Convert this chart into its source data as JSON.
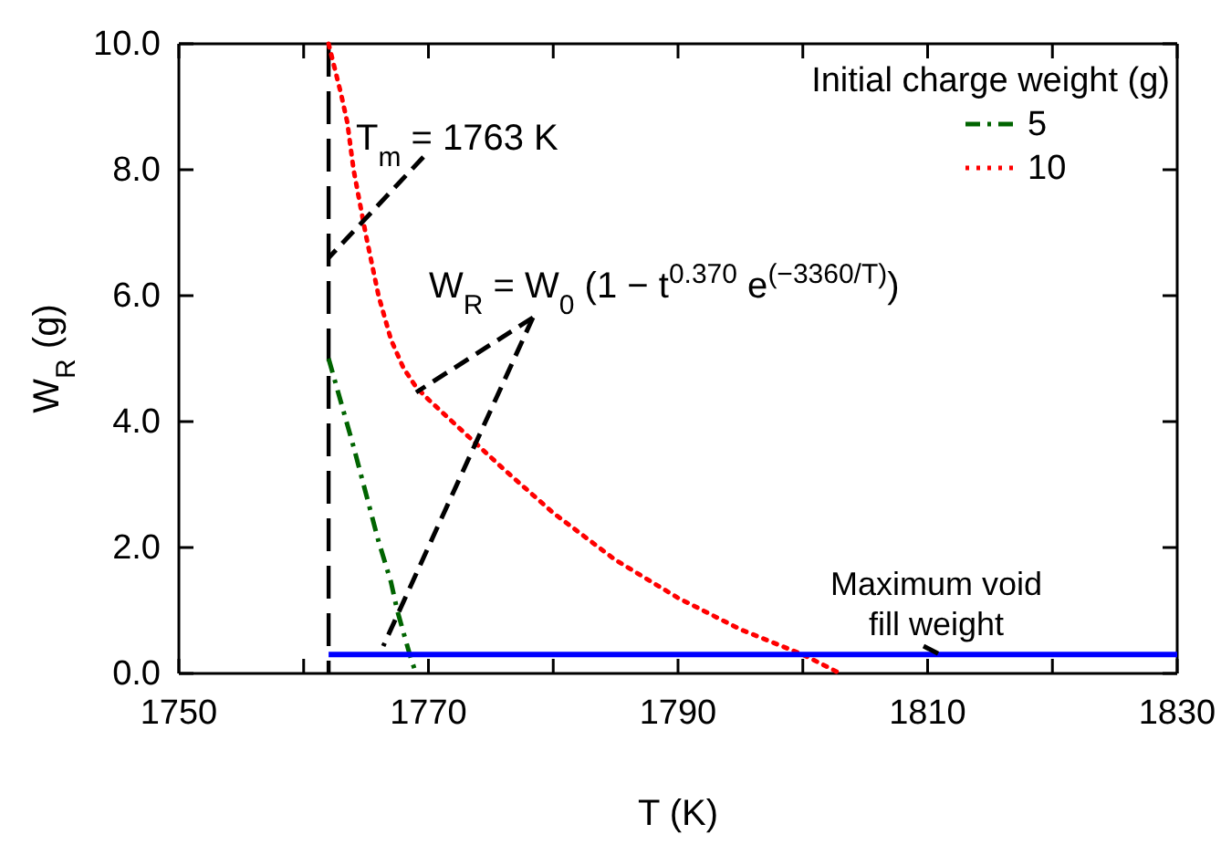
{
  "chart_data": {
    "type": "line",
    "xlabel": "T (K)",
    "ylabel": "W$_{R}$ (g)",
    "legend_title": "Initial charge weight (g)",
    "legend": "top right",
    "xlim": [
      1750,
      1830
    ],
    "xticks": [
      1750,
      {
        "value": 1760,
        "label": null
      },
      1770,
      {
        "value": 1780,
        "label": null
      },
      1790,
      {
        "value": 1800,
        "label": null
      },
      1810,
      {
        "value": 1820,
        "label": null
      },
      1830
    ],
    "ylim": [
      0,
      10
    ],
    "yticks": [
      {
        "value": 0,
        "label": "0.0"
      },
      {
        "value": 2,
        "label": "2.0"
      },
      {
        "value": 4,
        "label": "4.0"
      },
      {
        "value": 6,
        "label": "6.0"
      },
      {
        "value": 8,
        "label": "8.0"
      },
      {
        "value": 10,
        "label": "10.0"
      }
    ],
    "grid": false,
    "series": [
      {
        "name": "5",
        "color": "#006400",
        "line_style": "dashed",
        "x": [
          1762,
          1763,
          1764,
          1765,
          1766,
          1767,
          1767.5,
          1768,
          1768.5,
          1769
        ],
        "values": [
          5.0,
          4.3,
          3.6,
          2.85,
          2.1,
          1.45,
          1.0,
          0.65,
          0.3,
          0
        ]
      },
      {
        "name": "10",
        "color": "#ff0000",
        "line_style": "dotted",
        "x": [
          1762,
          1763,
          1763.5,
          1764,
          1765,
          1766,
          1767,
          1768,
          1769,
          1770,
          1773,
          1776,
          1780,
          1785,
          1790,
          1795,
          1800,
          1803
        ],
        "values": [
          10,
          9.2,
          8.75,
          8.0,
          6.95,
          6.0,
          5.3,
          4.85,
          4.55,
          4.35,
          3.8,
          3.25,
          2.55,
          1.8,
          1.2,
          0.7,
          0.3,
          0
        ]
      },
      {
        "color": "#0000ff",
        "line_style": "solid",
        "x": [
          1762,
          1830
        ],
        "values": [
          0.3,
          0.3
        ]
      }
    ],
    "ref_lines": [
      {
        "axis": "x",
        "value": 1762,
        "color": "#000000",
        "line_style": "dashed"
      }
    ],
    "annotations": [
      {
        "text": "T$_{m}$ = 1763 K",
        "x": 1762,
        "y": 6.6
      },
      "W$_{R}$ = W$_{0}$ (1 − t$^{0.370}$ e$^{(−3360/T)}$)",
      {
        "text": "Maximum void\nfill weight",
        "x": 1811,
        "y": 0.3
      }
    ]
  }
}
